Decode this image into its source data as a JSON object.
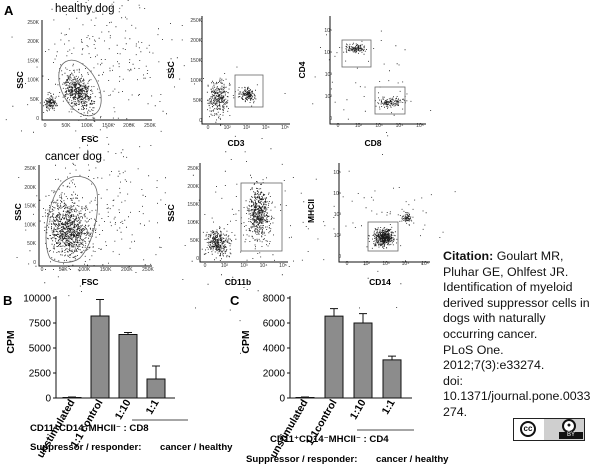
{
  "panel_labels": {
    "a": "A",
    "b": "B",
    "c": "C"
  },
  "flow": {
    "p1": {
      "title": "healthy dog",
      "x_label": "FSC",
      "y_label": "SSC",
      "x_ticks": [
        "0",
        "50K",
        "100K",
        "150K",
        "200K",
        "250K"
      ],
      "y_ticks": [
        "250K",
        "200K",
        "150K",
        "100K",
        "50K",
        "0"
      ]
    },
    "p2": {
      "x_label": "CD3",
      "y_label": "SSC",
      "x_ticks": [
        "0",
        "10²",
        "10³",
        "10⁴",
        "10⁵"
      ],
      "y_ticks": [
        "250K",
        "200K",
        "150K",
        "100K",
        "50K",
        "0"
      ]
    },
    "p3": {
      "x_label": "CD8",
      "y_label": "CD4",
      "x_ticks": [
        "0",
        "10²",
        "10³",
        "10⁴",
        "10⁵"
      ],
      "y_ticks": [
        "10⁵",
        "10⁴",
        "10³",
        "10²",
        "0"
      ]
    },
    "p4": {
      "title": "cancer dog",
      "x_label": "FSC",
      "y_label": "SSC",
      "x_ticks": [
        "0",
        "50K",
        "100K",
        "150K",
        "200K",
        "250K"
      ],
      "y_ticks": [
        "250K",
        "200K",
        "150K",
        "100K",
        "50K",
        "0"
      ]
    },
    "p5": {
      "x_label": "CD11b",
      "y_label": "SSC",
      "x_ticks": [
        "0",
        "10²",
        "10³",
        "10⁴",
        "10⁵"
      ],
      "y_ticks": [
        "250K",
        "200K",
        "150K",
        "100K",
        "50K",
        "0"
      ]
    },
    "p6": {
      "x_label": "CD14",
      "y_label": "MHCII",
      "x_ticks": [
        "0",
        "10²",
        "10³",
        "10⁴",
        "10⁵"
      ],
      "y_ticks": [
        "10⁵",
        "10⁴",
        "10³",
        "10²",
        "0"
      ]
    }
  },
  "chart_data": [
    {
      "type": "bar",
      "panel": "B",
      "ylabel": "CPM",
      "ylim": [
        0,
        10000
      ],
      "y_ticks": [
        "10000",
        "7500",
        "5000",
        "2500",
        "0"
      ],
      "y_tick_values": [
        10000,
        7500,
        5000,
        2500,
        0
      ],
      "categories": [
        "unstimulated",
        "1:1 control",
        "1:10",
        "1:1"
      ],
      "values": [
        50,
        8200,
        6350,
        1900
      ],
      "errors": [
        50,
        1650,
        200,
        1300
      ],
      "bracket_label": "CD11⁺CD14⁻MHCII⁻ : CD8",
      "footer": {
        "label": "Suppressor / responder:",
        "value": "cancer / healthy"
      }
    },
    {
      "type": "bar",
      "panel": "C",
      "ylabel": "CPM",
      "ylim": [
        0,
        8000
      ],
      "y_ticks": [
        "8000",
        "6000",
        "4000",
        "2000",
        "0"
      ],
      "y_tick_values": [
        8000,
        6000,
        4000,
        2000,
        0
      ],
      "categories": [
        "unstimulated",
        "1:1control",
        "1:10",
        "1:1"
      ],
      "values": [
        40,
        6550,
        6000,
        3050
      ],
      "errors": [
        40,
        600,
        750,
        300
      ],
      "bracket_label": "CD11⁺CD14⁻MHCII⁻ : CD4",
      "footer": {
        "label": "Suppressor / responder:",
        "value": "cancer / healthy"
      }
    }
  ],
  "citation": {
    "label": "Citation:",
    "lines": [
      " Goulart MR,",
      "Pluhar GE, Ohlfest JR.",
      "Identification of myeloid",
      "derived suppressor cells in",
      "dogs with naturally",
      "occurring cancer.",
      "PLoS One.",
      "2012;7(3):e33274.",
      "doi:",
      "10.1371/journal.pone.0033",
      "274."
    ]
  },
  "license": {
    "icon": "cc-by-icon",
    "cc": "cc",
    "by": "BY"
  }
}
